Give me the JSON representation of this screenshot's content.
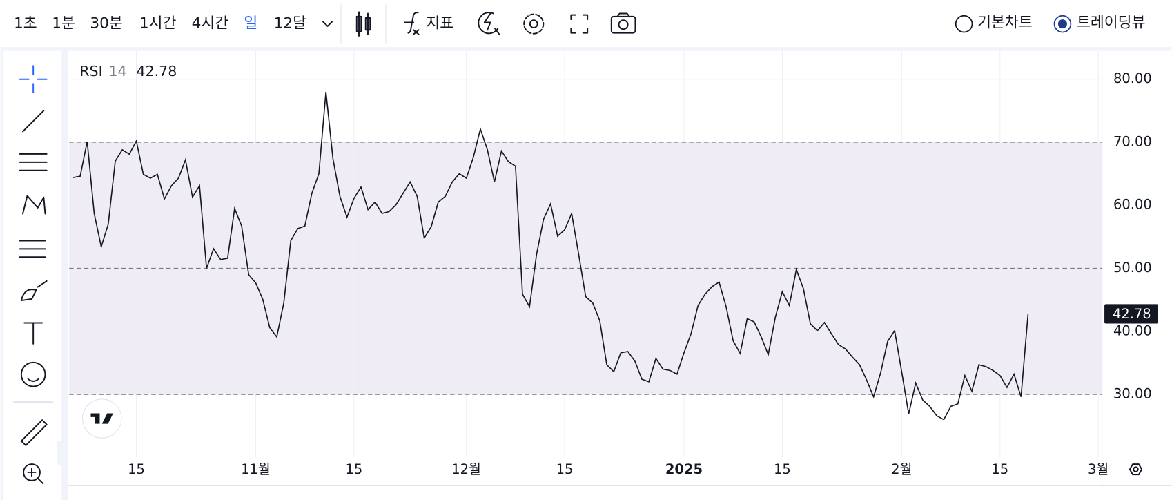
{
  "toolbar": {
    "intervals": [
      "1초",
      "1분",
      "30분",
      "1시간",
      "4시간",
      "일",
      "12달"
    ],
    "indicators": "지표",
    "chart_modes": [
      "기본차트",
      "트레이딩뷰"
    ]
  },
  "chart_data": {
    "type": "line",
    "title": "RSI",
    "period": 14,
    "color": "#131722",
    "categories": [
      null,
      null,
      null,
      null,
      null,
      null,
      null,
      null,
      null,
      "15",
      null,
      null,
      null,
      null,
      null,
      null,
      null,
      null,
      null,
      null,
      null,
      null,
      null,
      null,
      null,
      null,
      "11월",
      null,
      null,
      null,
      null,
      null,
      null,
      null,
      null,
      null,
      null,
      null,
      null,
      null,
      "15",
      null,
      null,
      null,
      null,
      null,
      null,
      null,
      null,
      null,
      null,
      null,
      null,
      null,
      null,
      null,
      "12월",
      null,
      null,
      null,
      null,
      null,
      null,
      null,
      null,
      null,
      null,
      null,
      null,
      null,
      "15",
      null,
      null,
      null,
      null,
      null,
      null,
      null,
      null,
      null,
      null,
      null,
      null,
      null,
      null,
      null,
      null,
      "2025",
      null,
      null,
      null,
      null,
      null,
      null,
      null,
      null,
      null,
      null,
      null,
      null,
      null,
      "15",
      null,
      null,
      null,
      null,
      null,
      null,
      null,
      null,
      null,
      null,
      null,
      null,
      null,
      null,
      null,
      null,
      "2월",
      null,
      null,
      null,
      null,
      null,
      null,
      null,
      null,
      null,
      null,
      null,
      null,
      null,
      "15",
      null,
      null,
      null,
      null,
      null,
      null,
      null,
      null,
      null,
      null,
      null,
      null,
      null,
      "3월"
    ],
    "values": [
      64.4,
      64.6,
      70.1,
      58.7,
      53.4,
      57,
      67,
      68.8,
      68.1,
      70.2,
      64.9,
      64.3,
      64.9,
      61,
      63.1,
      64.3,
      67.2,
      61.3,
      63.1,
      50,
      53.1,
      51.4,
      51.6,
      59.5,
      56.7,
      49,
      47.7,
      45.1,
      40.6,
      39.1,
      44.5,
      54.4,
      56.3,
      56.7,
      61.9,
      65,
      78,
      67.4,
      61.4,
      58.1,
      61.1,
      62.9,
      59.3,
      60.5,
      58.7,
      59,
      60.1,
      61.9,
      63.7,
      61.4,
      54.8,
      56.6,
      60.5,
      61.4,
      63.7,
      65,
      64.3,
      67.6,
      72.1,
      68.8,
      63.7,
      68.6,
      66.9,
      66.2,
      45.9,
      43.9,
      52.2,
      57.8,
      60.2,
      55.1,
      56.1,
      58.7,
      52.2,
      45.5,
      44.5,
      41.7,
      34.7,
      33.6,
      36.6,
      36.8,
      35.3,
      32.4,
      32,
      35.7,
      34,
      33.8,
      33.2,
      36.6,
      39.6,
      44.1,
      45.9,
      47.1,
      47.8,
      43.9,
      38.5,
      36.5,
      42,
      41.5,
      39.1,
      36.3,
      42.2,
      46.3,
      44.1,
      49.8,
      46.8,
      41.2,
      40.1,
      41.4,
      39.6,
      37.9,
      37.2,
      35.9,
      34.7,
      32.3,
      29.6,
      33.4,
      38.4,
      40.1,
      33.6,
      26.9,
      31.8,
      29.1,
      28.1,
      26.6,
      26,
      28.1,
      28.5,
      33,
      30.5,
      34.7,
      34.4,
      33.8,
      33,
      31.1,
      33.2,
      29.6,
      42.78,
      null,
      null,
      null,
      null,
      null,
      null,
      null,
      null,
      null,
      null
    ],
    "ylim": [
      20,
      84.5
    ],
    "yticks": [
      {
        "value": 30,
        "label": "30.00"
      },
      {
        "value": 40,
        "label": "40.00"
      },
      {
        "value": 50,
        "label": "50.00"
      },
      {
        "value": 60,
        "label": "60.00"
      },
      {
        "value": 70,
        "label": "70.00"
      },
      {
        "value": 80,
        "label": "80.00"
      }
    ],
    "reference_lines": [
      30,
      50,
      70
    ],
    "band": [
      30,
      70
    ],
    "band_color": "#efecf5",
    "grid": true
  }
}
